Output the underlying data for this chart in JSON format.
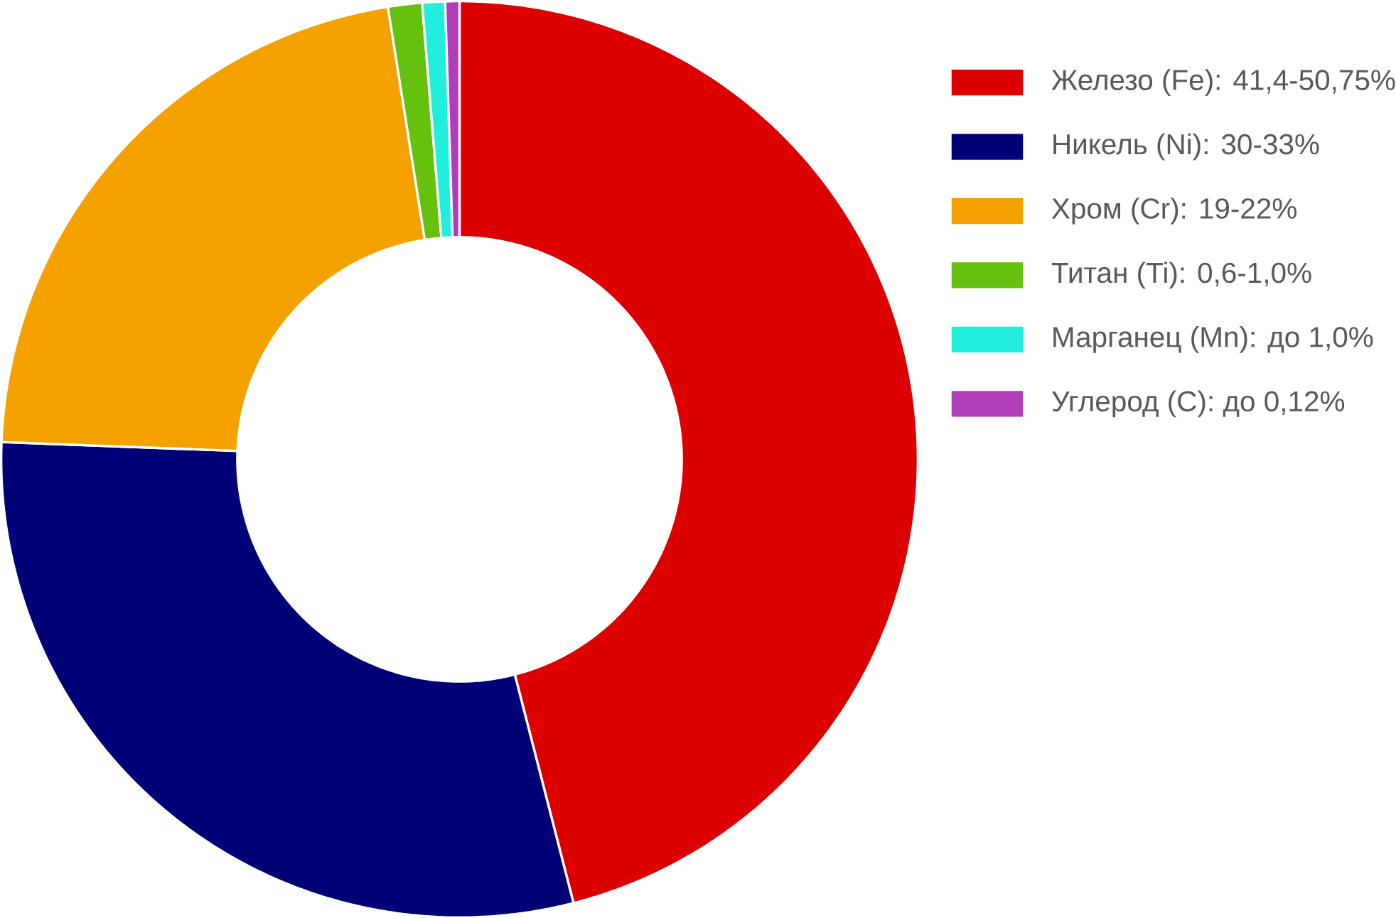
{
  "chart_data": {
    "type": "donut",
    "categories": [
      "Железо (Fe): 41,4-50,75%",
      "Никель (Ni): 30-33%",
      "Хром (Cr): 19-22%",
      "Титан (Ti): 0,6-1,0%",
      "Марганец (Mn): до 1,0%",
      "Углерод (C): до 0,12%"
    ],
    "values": [
      46.0,
      29.6,
      21.9,
      1.2,
      0.8,
      0.5
    ],
    "colors": [
      "#dd0000",
      "#000077",
      "#f5a100",
      "#66c00e",
      "#22eedd",
      "#b03cb8"
    ],
    "legend": "top right"
  }
}
